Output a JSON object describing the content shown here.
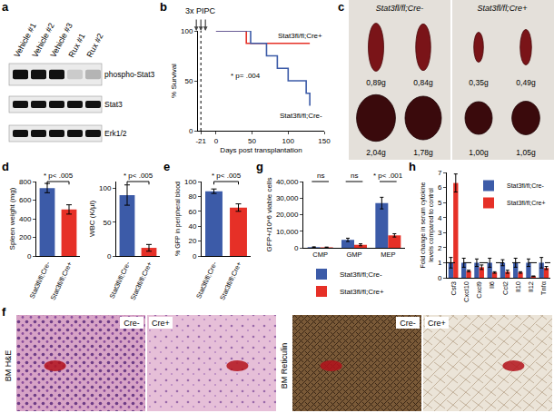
{
  "panels": [
    {
      "label": "a",
      "type": "western_blot",
      "lanes": [
        "Vehicle #1",
        "Vehicle #2",
        "Vehicle #3",
        "Rux #1",
        "Rux #2"
      ],
      "rows": [
        {
          "name": "phospho-Stat3",
          "intensity": [
            1,
            1,
            1,
            0.15,
            0.25
          ]
        },
        {
          "name": "Stat3",
          "intensity": [
            1,
            1,
            1,
            1,
            1
          ]
        },
        {
          "name": "Erk1/2",
          "intensity": [
            1,
            1,
            1,
            1,
            1
          ]
        }
      ]
    },
    {
      "label": "c",
      "type": "photo",
      "groups": [
        {
          "name": "Stat3fl/fl;Cre-",
          "top": [
            {
              "value": 0.89,
              "label": "0,89g"
            },
            {
              "value": 0.84,
              "label": "0,84g"
            }
          ],
          "bottom": [
            {
              "value": 2.04,
              "label": "2,04g"
            },
            {
              "value": 1.78,
              "label": "1,78g"
            }
          ]
        },
        {
          "name": "Stat3fl/fl;Cre+",
          "top": [
            {
              "value": 0.35,
              "label": "0,35g"
            },
            {
              "value": 0.49,
              "label": "0,49g"
            }
          ],
          "bottom": [
            {
              "value": 1.0,
              "label": "1,00g"
            },
            {
              "value": 1.05,
              "label": "1,05g"
            }
          ]
        }
      ]
    },
    {
      "label": "f",
      "type": "histology",
      "stains": [
        "BM H&E",
        "BM Reticulin"
      ],
      "groups": [
        "Cre-",
        "Cre+"
      ]
    }
  ],
  "chart_data": [
    {
      "panel": "b",
      "type": "line",
      "x_label": "Days post transplantation",
      "y_label": "% Survival",
      "xlim": [
        -25,
        150
      ],
      "xticks": [
        -21,
        0,
        50,
        100,
        150
      ],
      "ylim": [
        0,
        100
      ],
      "yticks": [
        0,
        50,
        100
      ],
      "treatment": {
        "label": "3x PIPC",
        "x": -21
      },
      "annotations": [
        {
          "text": "* p= .004"
        }
      ],
      "series": [
        {
          "name": "Stat3fl/fl;Cre+",
          "color": "#e63027",
          "x": [
            0,
            42,
            130
          ],
          "values": [
            100,
            87.5,
            87.5
          ]
        },
        {
          "name": "Stat3fl/fl;Cre-",
          "color": "#3c5ba8",
          "x": [
            0,
            48,
            70,
            85,
            100,
            125,
            130
          ],
          "values": [
            100,
            87.5,
            75,
            62.5,
            50,
            37.5,
            25
          ]
        }
      ]
    },
    {
      "panel": "d",
      "type": "bar",
      "y_label": "Spleen weight (mg)",
      "categories": [
        "Stat3fl/fl;Cre-",
        "Stat3fl/fl;Cre+"
      ],
      "values": [
        730,
        500
      ],
      "errors": [
        50,
        50
      ],
      "colors": [
        "#3c5ba8",
        "#e63027"
      ],
      "ylim": [
        0,
        800
      ],
      "yticks": [
        0,
        200,
        400,
        600,
        800
      ],
      "annotations": [
        {
          "text": "* p< .005"
        }
      ]
    },
    {
      "type": "bar",
      "y_label": "WBC (K/µl)",
      "categories": [
        "Stat3fl/fl;Cre-",
        "Stat3fl/fl;Cre+"
      ],
      "values": [
        90,
        12
      ],
      "errors": [
        15,
        5
      ],
      "colors": [
        "#3c5ba8",
        "#e63027"
      ],
      "ylim": [
        0,
        110
      ],
      "yticks": [
        0,
        50,
        100
      ],
      "annotations": [
        {
          "text": "* p< .005"
        }
      ]
    },
    {
      "panel": "e",
      "type": "bar",
      "y_label": "% GFP in peripheral blood",
      "categories": [
        "Stat3fl/fl;Cre-",
        "Stat3fl/fl;Cre+"
      ],
      "values": [
        87,
        65
      ],
      "errors": [
        3,
        5
      ],
      "colors": [
        "#3c5ba8",
        "#e63027"
      ],
      "ylim": [
        0,
        100
      ],
      "yticks": [
        0,
        20,
        40,
        60,
        80,
        100
      ],
      "annotations": [
        {
          "text": "* p< .005"
        }
      ]
    },
    {
      "panel": "g",
      "type": "bar",
      "y_label": "GFP+/10^6 viable cells",
      "categories": [
        "CMP",
        "GMP",
        "MEP"
      ],
      "series": [
        {
          "name": "Stat3fl/fl;Cre-",
          "color": "#3c5ba8",
          "values": [
            400,
            4800,
            27000
          ],
          "errors": [
            200,
            1000,
            3500
          ]
        },
        {
          "name": "Stat3fl/fl;Cre+",
          "color": "#e63027",
          "values": [
            300,
            1800,
            7500
          ],
          "errors": [
            150,
            600,
            1000
          ]
        }
      ],
      "ylim": [
        0,
        40000
      ],
      "yticks": [
        0,
        {
          "value": 10000,
          "label": "10,000"
        },
        {
          "value": 20000,
          "label": "20,000"
        },
        {
          "value": 30000,
          "label": "30,000"
        },
        {
          "value": 40000,
          "label": "40,000"
        }
      ],
      "legend": "bottom",
      "annotations": [
        {
          "text": "ns",
          "category": "CMP"
        },
        {
          "text": "ns",
          "category": "GMP"
        },
        {
          "text": "* p< .001",
          "category": "MEP"
        }
      ]
    },
    {
      "panel": "h",
      "type": "bar",
      "y_label": [
        "Fold change in serum cytokine",
        "levels compared to control"
      ],
      "categories": [
        "Csf3",
        "Cxcl10",
        "Cxcl9",
        "Il6",
        "Ccl2",
        "Il10",
        "Il12",
        "Tnfα"
      ],
      "series": [
        {
          "name": "Stat3fl/fl;Cre-",
          "color": "#3c5ba8",
          "values": [
            1,
            1,
            1,
            1,
            1,
            1,
            1,
            1
          ],
          "errors": [
            0.35,
            0.3,
            0.25,
            0.3,
            0.2,
            0.3,
            0.25,
            0.35
          ]
        },
        {
          "name": "Stat3fl/fl;Cre+",
          "color": "#e63027",
          "values": [
            6.3,
            0.45,
            0.7,
            0.35,
            0.4,
            0.35,
            0.1,
            0.65
          ],
          "errors": [
            0.6,
            0.05,
            0.15,
            0.05,
            0.1,
            0.05,
            0.02,
            0.1
          ]
        }
      ],
      "ylim": [
        0,
        7
      ],
      "yticks": [
        0,
        1,
        2,
        3,
        4,
        5,
        6,
        7
      ],
      "reference_line": 1,
      "legend": "top right"
    }
  ]
}
